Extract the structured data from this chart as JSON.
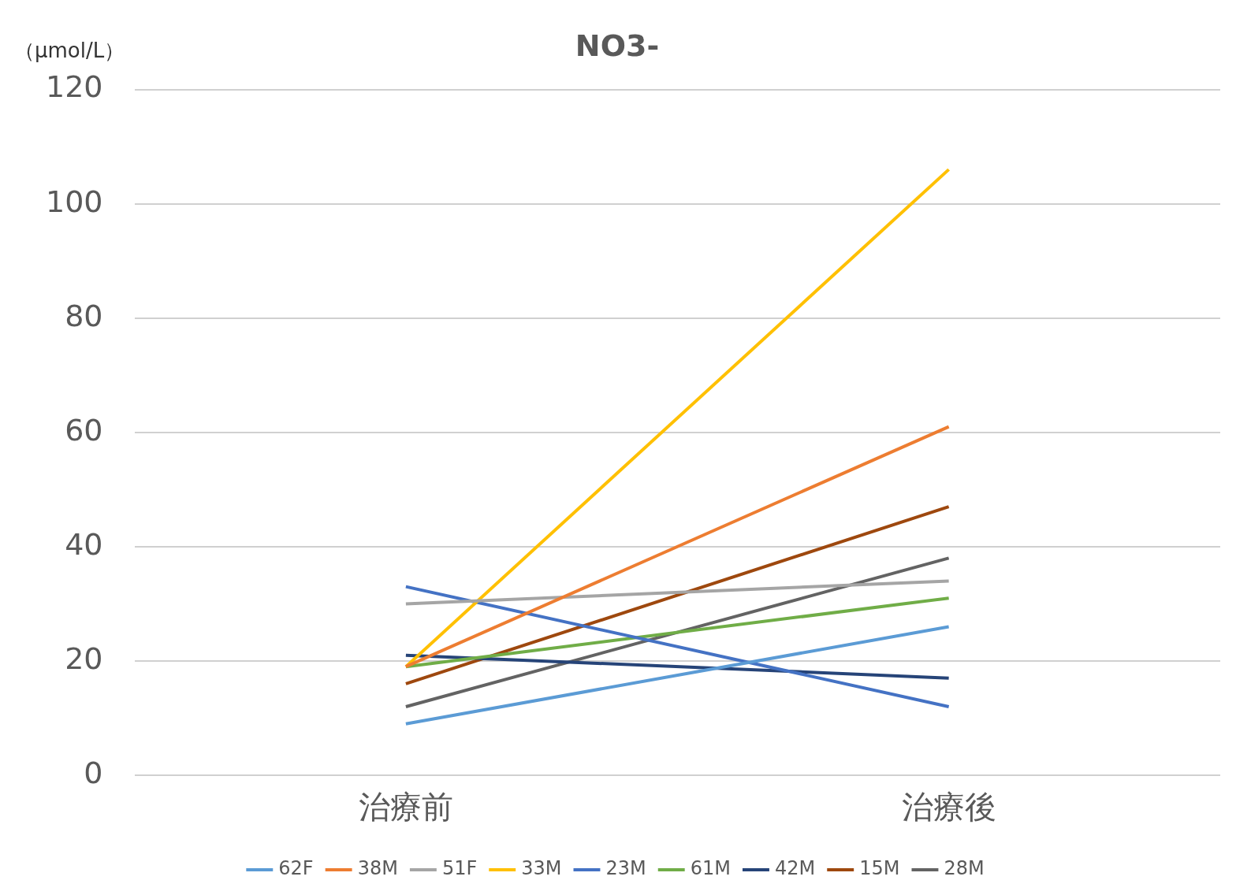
{
  "chart_data": {
    "type": "line",
    "title": "NO3-",
    "ylabel": "（μmol/L）",
    "categories": [
      "治療前",
      "治療後"
    ],
    "series": [
      {
        "name": "62F",
        "color": "#5b9bd5",
        "values": [
          9,
          26
        ]
      },
      {
        "name": "38M",
        "color": "#ed7d31",
        "values": [
          19,
          61
        ]
      },
      {
        "name": "51F",
        "color": "#a5a5a5",
        "values": [
          30,
          34
        ]
      },
      {
        "name": "33M",
        "color": "#ffc000",
        "values": [
          19,
          106
        ]
      },
      {
        "name": "23M",
        "color": "#4472c4",
        "values": [
          33,
          12
        ]
      },
      {
        "name": "61M",
        "color": "#70ad47",
        "values": [
          19,
          31
        ]
      },
      {
        "name": "42M",
        "color": "#264478",
        "values": [
          21,
          17
        ]
      },
      {
        "name": "15M",
        "color": "#9e480e",
        "values": [
          16,
          47
        ]
      },
      {
        "name": "28M",
        "color": "#636363",
        "values": [
          12,
          38
        ]
      }
    ],
    "ylim": [
      0,
      120
    ],
    "yticks": [
      0,
      20,
      40,
      60,
      80,
      100,
      120
    ],
    "grid": "y",
    "legend": "bottom",
    "marker": "none",
    "line_style": "solid"
  }
}
